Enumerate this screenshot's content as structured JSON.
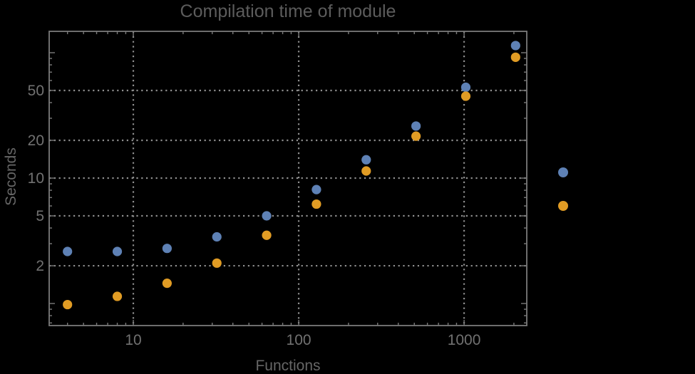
{
  "colors": {
    "background": "#000000",
    "frame": "#7a7a7a",
    "grid": "#8f8f8f",
    "title_text": "#5c5c5c",
    "tick_text": "#717171",
    "axis_label_text": "#666666"
  },
  "chart_data": {
    "type": "scatter",
    "title": "Compilation time of module",
    "xlabel": "Functions",
    "ylabel": "Seconds",
    "x_scale": "log",
    "y_scale": "log",
    "xlim": [
      3.1,
      2393
    ],
    "ylim": [
      0.667,
      148
    ],
    "x_ticks": [
      10,
      100,
      1000
    ],
    "y_ticks": [
      2,
      5,
      10,
      20,
      50
    ],
    "grid": {
      "style": "dotted",
      "x_values": [
        10,
        100,
        1000
      ],
      "y_values": [
        2,
        5,
        10,
        20,
        50
      ]
    },
    "x": [
      4,
      8,
      16,
      32,
      64,
      128,
      256,
      512,
      1024,
      2048
    ],
    "series": [
      {
        "name": "blue-series",
        "label": "",
        "color": "#5e81b5",
        "values": [
          2.6,
          2.6,
          2.75,
          3.4,
          5.0,
          8.1,
          14,
          26,
          53,
          114
        ]
      },
      {
        "name": "orange-series",
        "label": "",
        "color": "#e19c24",
        "values": [
          0.98,
          1.14,
          1.45,
          2.1,
          3.5,
          6.2,
          11.4,
          21.6,
          45,
          92
        ]
      }
    ],
    "legend": {
      "position": "right-outside",
      "labels_visible": false,
      "markers": [
        {
          "name": "blue-series",
          "color": "#5e81b5",
          "label": ""
        },
        {
          "name": "orange-series",
          "color": "#e19c24",
          "label": ""
        }
      ]
    }
  }
}
